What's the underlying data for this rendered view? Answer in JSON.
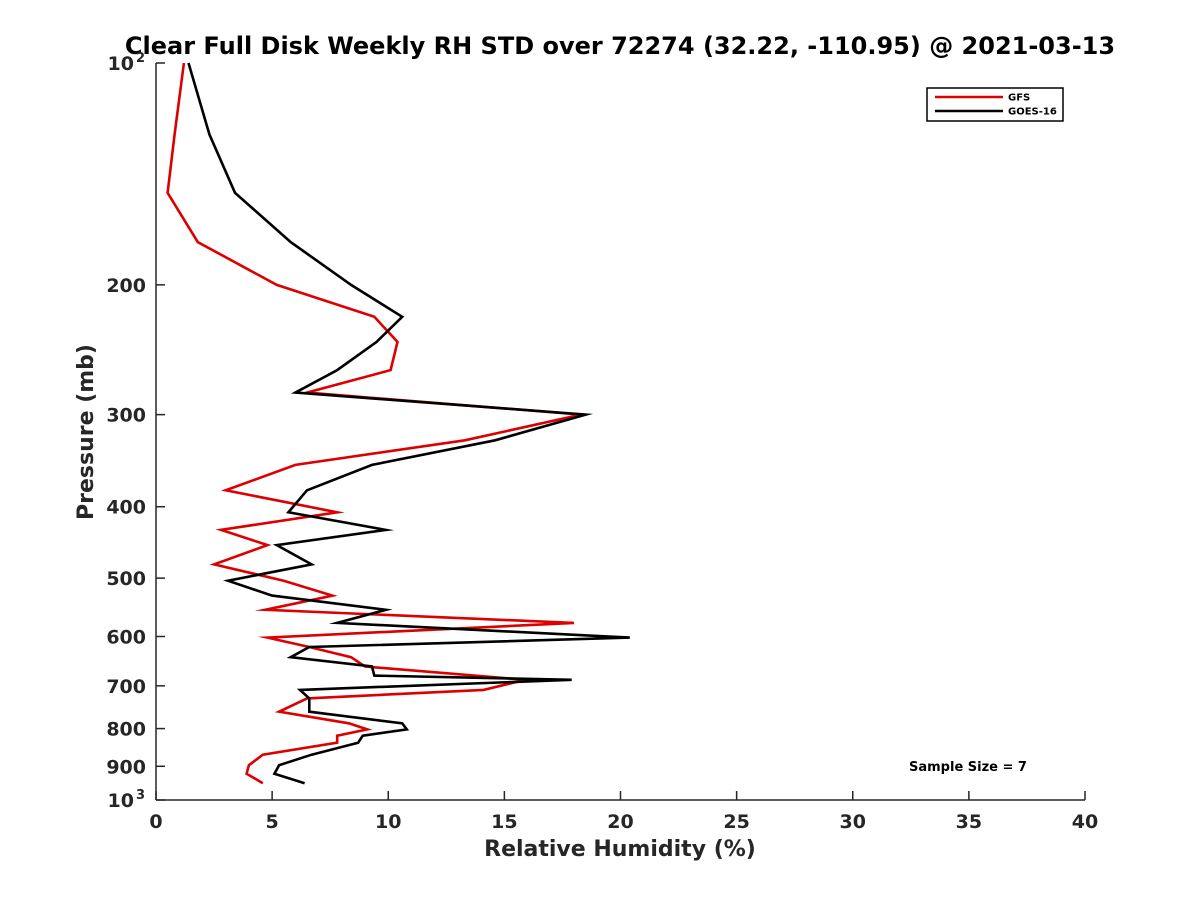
{
  "chart_data": {
    "type": "line",
    "title": "Clear Full Disk Weekly RH STD over 72274 (32.22, -110.95) @ 2021-03-13",
    "xlabel": "Relative Humidity (%)",
    "ylabel": "Pressure (mb)",
    "xlim": [
      0,
      40
    ],
    "ylim": [
      100,
      1000
    ],
    "y_scale": "log",
    "y_reversed": true,
    "x_ticks": [
      0,
      5,
      10,
      15,
      20,
      25,
      30,
      35,
      40
    ],
    "y_ticks": [
      {
        "value": 100,
        "label": "10",
        "sup": "2"
      },
      {
        "value": 200,
        "label": "200",
        "sup": ""
      },
      {
        "value": 300,
        "label": "300",
        "sup": ""
      },
      {
        "value": 400,
        "label": "400",
        "sup": ""
      },
      {
        "value": 500,
        "label": "500",
        "sup": ""
      },
      {
        "value": 600,
        "label": "600",
        "sup": ""
      },
      {
        "value": 700,
        "label": "700",
        "sup": ""
      },
      {
        "value": 800,
        "label": "800",
        "sup": ""
      },
      {
        "value": 900,
        "label": "900",
        "sup": ""
      },
      {
        "value": 1000,
        "label": "10",
        "sup": "3"
      }
    ],
    "grid": false,
    "legend_position": "top-right",
    "annotation": "Sample Size = 7",
    "series": [
      {
        "name": "GFS",
        "color": "#dd0000",
        "points": [
          [
            1.2,
            100
          ],
          [
            0.8,
            125
          ],
          [
            0.5,
            150
          ],
          [
            1.8,
            175
          ],
          [
            5.2,
            200
          ],
          [
            9.4,
            221
          ],
          [
            10.4,
            239
          ],
          [
            10.1,
            261
          ],
          [
            6.5,
            280
          ],
          [
            18.3,
            300
          ],
          [
            13.3,
            325
          ],
          [
            6.0,
            351
          ],
          [
            3.0,
            380
          ],
          [
            7.8,
            407
          ],
          [
            2.8,
            430
          ],
          [
            4.8,
            451
          ],
          [
            2.5,
            479
          ],
          [
            5.5,
            504
          ],
          [
            7.6,
            528
          ],
          [
            4.7,
            552
          ],
          [
            18.0,
            575
          ],
          [
            4.8,
            602
          ],
          [
            6.6,
            620
          ],
          [
            8.4,
            640
          ],
          [
            9.0,
            659
          ],
          [
            15.9,
            687
          ],
          [
            14.1,
            709
          ],
          [
            6.5,
            728
          ],
          [
            5.3,
            759
          ],
          [
            8.3,
            787
          ],
          [
            9.1,
            802
          ],
          [
            7.8,
            818
          ],
          [
            7.8,
            836
          ],
          [
            4.6,
            868
          ],
          [
            4.0,
            897
          ],
          [
            3.9,
            921
          ],
          [
            4.6,
            949
          ]
        ]
      },
      {
        "name": "GOES-16",
        "color": "#000000",
        "points": [
          [
            1.4,
            100
          ],
          [
            2.3,
            125
          ],
          [
            3.4,
            150
          ],
          [
            5.8,
            175
          ],
          [
            8.4,
            200
          ],
          [
            10.6,
            221
          ],
          [
            9.5,
            239
          ],
          [
            7.8,
            261
          ],
          [
            6.0,
            280
          ],
          [
            18.5,
            300
          ],
          [
            14.6,
            325
          ],
          [
            9.3,
            351
          ],
          [
            6.5,
            380
          ],
          [
            5.7,
            407
          ],
          [
            9.9,
            430
          ],
          [
            5.2,
            451
          ],
          [
            6.7,
            479
          ],
          [
            3.1,
            504
          ],
          [
            5.0,
            528
          ],
          [
            9.9,
            552
          ],
          [
            7.8,
            575
          ],
          [
            20.4,
            602
          ],
          [
            6.6,
            620
          ],
          [
            5.8,
            640
          ],
          [
            9.3,
            659
          ],
          [
            9.4,
            678
          ],
          [
            17.9,
            687
          ],
          [
            6.2,
            709
          ],
          [
            6.6,
            728
          ],
          [
            6.6,
            759
          ],
          [
            10.6,
            787
          ],
          [
            10.8,
            802
          ],
          [
            8.9,
            818
          ],
          [
            8.7,
            836
          ],
          [
            6.7,
            868
          ],
          [
            5.3,
            897
          ],
          [
            5.1,
            921
          ],
          [
            6.4,
            949
          ]
        ]
      }
    ]
  }
}
